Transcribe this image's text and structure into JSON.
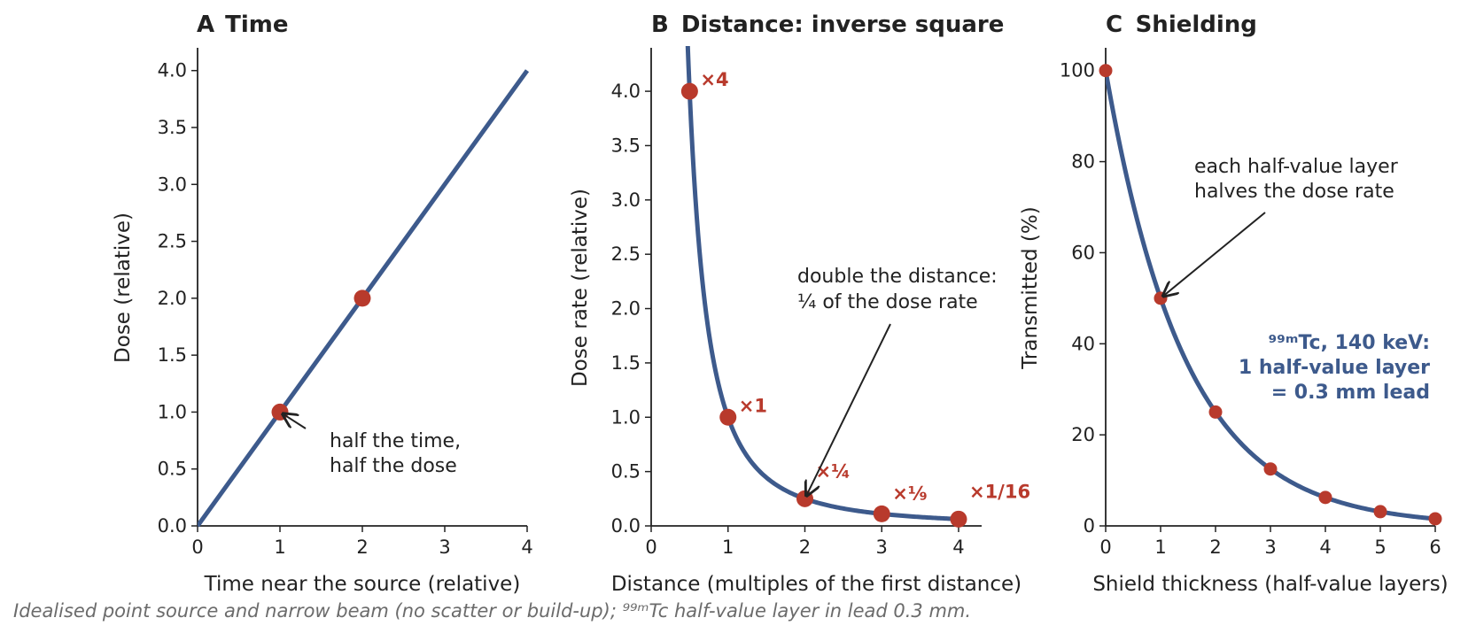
{
  "colors": {
    "curve": "#3d5a8c",
    "point": "#b83a2c",
    "text": "#222222",
    "caption": "#6b6b6b"
  },
  "caption": "Idealised point source and narrow beam (no scatter or build-up); ⁹⁹ᵐTc half-value layer in lead 0.3 mm.",
  "chart_data": [
    {
      "type": "line",
      "panel": "A",
      "title": "Time",
      "xlabel": "Time near the source (relative)",
      "ylabel": "Dose (relative)",
      "xlim": [
        0,
        4
      ],
      "ylim": [
        0,
        4.2
      ],
      "xticks": [
        0,
        1,
        2,
        3,
        4
      ],
      "xtick_labels": [
        "0",
        "1",
        "2",
        "3",
        "4"
      ],
      "yticks": [
        0,
        0.5,
        1,
        1.5,
        2,
        2.5,
        3,
        3.5,
        4
      ],
      "ytick_labels": [
        "0.0",
        "0.5",
        "1.0",
        "1.5",
        "2.0",
        "2.5",
        "3.0",
        "3.5",
        "4.0"
      ],
      "series": [
        {
          "x": [
            0,
            4
          ],
          "y": [
            0,
            4
          ]
        }
      ],
      "points": [
        {
          "x": 1,
          "y": 1
        },
        {
          "x": 2,
          "y": 2
        }
      ],
      "annotations": [
        {
          "lines": [
            "half the time,",
            "half the dose"
          ],
          "arrow_to": {
            "x": 1,
            "y": 1
          }
        }
      ],
      "grid": false
    },
    {
      "type": "line",
      "panel": "B",
      "title": "Distance: inverse square",
      "xlabel": "Distance (multiples of the first distance)",
      "ylabel": "Dose rate (relative)",
      "xlim": [
        0,
        4.3
      ],
      "ylim": [
        0,
        4.4
      ],
      "xticks": [
        0,
        1,
        2,
        3,
        4
      ],
      "xtick_labels": [
        "0",
        "1",
        "2",
        "3",
        "4"
      ],
      "yticks": [
        0,
        0.5,
        1,
        1.5,
        2,
        2.5,
        3,
        3.5,
        4
      ],
      "ytick_labels": [
        "0.0",
        "0.5",
        "1.0",
        "1.5",
        "2.0",
        "2.5",
        "3.0",
        "3.5",
        "4.0"
      ],
      "series": [
        {
          "function": "1/x^2",
          "x_range": [
            0.45,
            4
          ]
        }
      ],
      "points": [
        {
          "x": 0.5,
          "y": 4,
          "label": "×4"
        },
        {
          "x": 1,
          "y": 1,
          "label": "×1"
        },
        {
          "x": 2,
          "y": 0.25,
          "label": "×¼"
        },
        {
          "x": 3,
          "y": 0.111,
          "label": "×⅑"
        },
        {
          "x": 4,
          "y": 0.0625,
          "label": "×1/16"
        }
      ],
      "annotations": [
        {
          "lines": [
            "double the distance:",
            "¼ of the dose rate"
          ],
          "arrow_to": {
            "x": 2,
            "y": 0.25
          }
        }
      ],
      "grid": false
    },
    {
      "type": "line",
      "panel": "C",
      "title": "Shielding",
      "xlabel": "Shield thickness (half-value layers)",
      "ylabel": "Transmitted (%)",
      "xlim": [
        0,
        6
      ],
      "ylim": [
        0,
        105
      ],
      "xticks": [
        0,
        1,
        2,
        3,
        4,
        5,
        6
      ],
      "xtick_labels": [
        "0",
        "1",
        "2",
        "3",
        "4",
        "5",
        "6"
      ],
      "yticks": [
        0,
        20,
        40,
        60,
        80,
        100
      ],
      "ytick_labels": [
        "0",
        "20",
        "40",
        "60",
        "80",
        "100"
      ],
      "series": [
        {
          "function": "100*0.5^x",
          "x_range": [
            0,
            6
          ]
        }
      ],
      "points": [
        {
          "x": 0,
          "y": 100
        },
        {
          "x": 1,
          "y": 50
        },
        {
          "x": 2,
          "y": 25
        },
        {
          "x": 3,
          "y": 12.5
        },
        {
          "x": 4,
          "y": 6.25
        },
        {
          "x": 5,
          "y": 3.125
        },
        {
          "x": 6,
          "y": 1.5625
        }
      ],
      "annotations": [
        {
          "lines": [
            "each half-value layer",
            "halves the dose rate"
          ],
          "arrow_to": {
            "x": 1,
            "y": 50
          }
        }
      ],
      "note": [
        "⁹⁹ᵐTc, 140 keV:",
        "1 half-value layer",
        "= 0.3 mm lead"
      ],
      "grid": false
    }
  ]
}
